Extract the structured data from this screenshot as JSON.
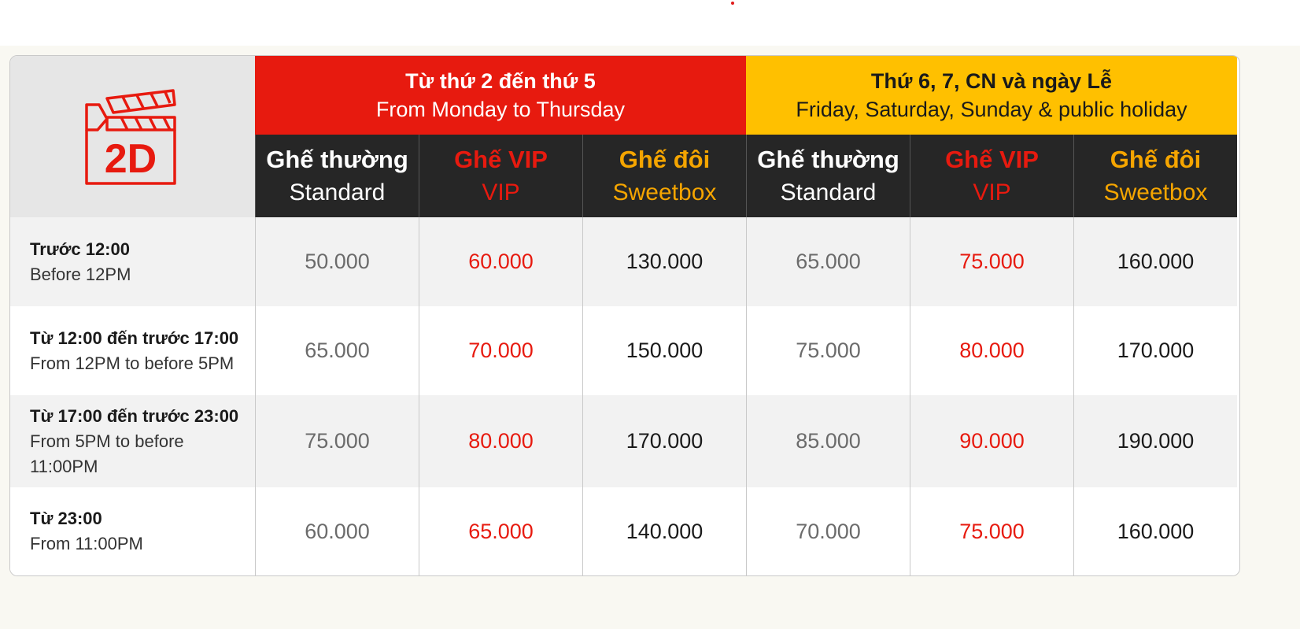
{
  "logo": {
    "label": "2D",
    "icon": "clapperboard-icon",
    "color": "#e71a0f"
  },
  "periods": [
    {
      "vn": "Từ thứ 2 đến thứ 5",
      "en": "From Monday to Thursday",
      "color": "#e71a0f"
    },
    {
      "vn": "Thứ 6, 7, CN và ngày Lễ",
      "en": "Friday, Saturday, Sunday & public holiday",
      "color": "#ffc000"
    }
  ],
  "seat_types": [
    {
      "vn": "Ghế thường",
      "en": "Standard",
      "color": "#ffffff"
    },
    {
      "vn": "Ghế VIP",
      "en": "VIP",
      "color": "#e71a0f"
    },
    {
      "vn": "Ghế đôi",
      "en": "Sweetbox",
      "color": "#f5a500"
    },
    {
      "vn": "Ghế thường",
      "en": "Standard",
      "color": "#ffffff"
    },
    {
      "vn": "Ghế VIP",
      "en": "VIP",
      "color": "#e71a0f"
    },
    {
      "vn": "Ghế đôi",
      "en": "Sweetbox",
      "color": "#f5a500"
    }
  ],
  "rows": [
    {
      "time_vn": "Trước 12:00",
      "time_en": "Before 12PM",
      "prices": [
        "50.000",
        "60.000",
        "130.000",
        "65.000",
        "75.000",
        "160.000"
      ]
    },
    {
      "time_vn": "Từ 12:00 đến trước 17:00",
      "time_en": "From 12PM to before 5PM",
      "prices": [
        "65.000",
        "70.000",
        "150.000",
        "75.000",
        "80.000",
        "170.000"
      ]
    },
    {
      "time_vn": "Từ 17:00 đến trước 23:00",
      "time_en": "From 5PM to before 11:00PM",
      "prices": [
        "75.000",
        "80.000",
        "170.000",
        "85.000",
        "90.000",
        "190.000"
      ]
    },
    {
      "time_vn": "Từ 23:00",
      "time_en": "From 11:00PM",
      "prices": [
        "60.000",
        "65.000",
        "140.000",
        "70.000",
        "75.000",
        "160.000"
      ]
    }
  ]
}
